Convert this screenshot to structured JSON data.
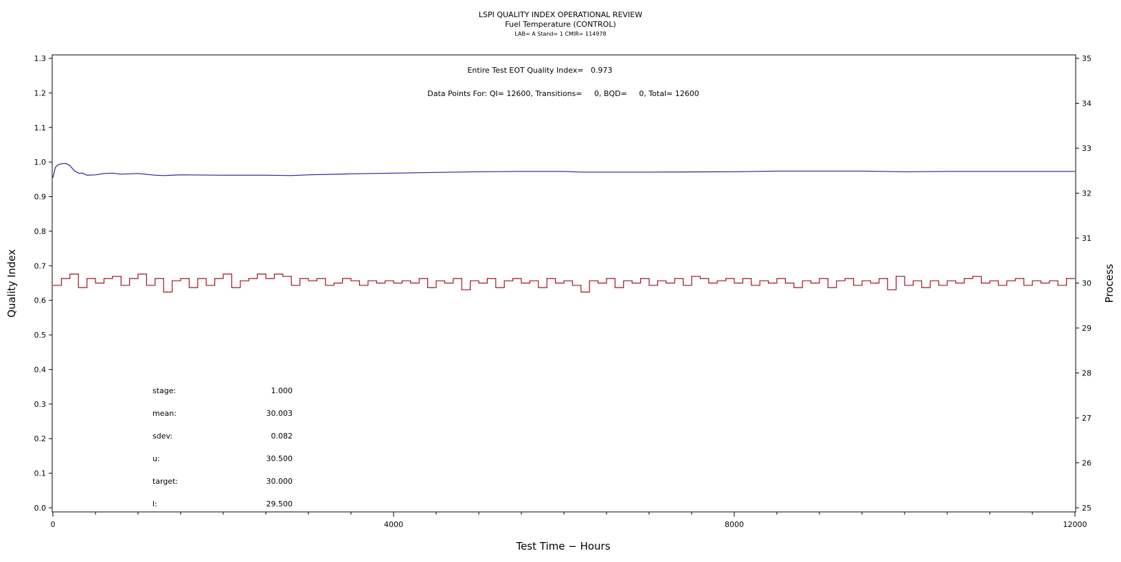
{
  "chart_data": {
    "type": "line",
    "title": "LSPI QUALITY INDEX OPERATIONAL REVIEW",
    "subtitle": "Fuel Temperature (CONTROL)",
    "subtitle2": "LAB= A Stand= 1 CMIR= 114978",
    "annotations": {
      "quality_index": "Entire Test EOT Quality Index=   0.973",
      "data_points": "Data Points For: QI= 12600, Transitions=     0, BQD=     0, Total= 12600"
    },
    "xlabel": "Test Time − Hours",
    "ylabel_left": "Quality Index",
    "ylabel_right": "Process",
    "xlim": [
      0,
      12000
    ],
    "ylim_left": [
      0.0,
      1.3
    ],
    "ylim_right": [
      25,
      35
    ],
    "x_ticks": [
      "0",
      "4000",
      "8000",
      "12000"
    ],
    "y_left_ticks": [
      "0.0",
      "0.1",
      "0.2",
      "0.3",
      "0.4",
      "0.5",
      "0.6",
      "0.7",
      "0.8",
      "0.9",
      "1.0",
      "1.1",
      "1.2",
      "1.3"
    ],
    "y_right_ticks": [
      "25",
      "26",
      "27",
      "28",
      "29",
      "30",
      "31",
      "32",
      "33",
      "34",
      "35"
    ],
    "grid": false,
    "series": [
      {
        "axis": "left",
        "color": "#1f1f9f",
        "x": [
          0,
          30,
          60,
          100,
          150,
          200,
          250,
          300,
          350,
          400,
          500,
          600,
          700,
          800,
          1000,
          1200,
          1300,
          1500,
          2000,
          2500,
          2800,
          3000,
          3500,
          4000,
          4500,
          5000,
          5500,
          6000,
          6200,
          7000,
          8000,
          8500,
          9000,
          9500,
          10000,
          10500,
          11000,
          11500,
          12000
        ],
        "values": [
          0.955,
          0.985,
          0.992,
          0.995,
          0.996,
          0.99,
          0.975,
          0.968,
          0.968,
          0.962,
          0.963,
          0.967,
          0.968,
          0.965,
          0.967,
          0.962,
          0.961,
          0.963,
          0.962,
          0.962,
          0.961,
          0.963,
          0.966,
          0.968,
          0.97,
          0.972,
          0.973,
          0.973,
          0.971,
          0.971,
          0.972,
          0.974,
          0.974,
          0.974,
          0.972,
          0.973,
          0.973,
          0.973,
          0.973
        ]
      },
      {
        "axis": "right",
        "color": "#a01020",
        "x": [
          0,
          100,
          200,
          300,
          400,
          500,
          600,
          700,
          800,
          900,
          1000,
          1100,
          1200,
          1300,
          1400,
          1500,
          1600,
          1700,
          1800,
          1900,
          2000,
          2100,
          2200,
          2300,
          2400,
          2500,
          2600,
          2700,
          2800,
          2900,
          3000,
          3100,
          3200,
          3300,
          3400,
          3500,
          3600,
          3700,
          3800,
          3900,
          4000,
          4100,
          4200,
          4300,
          4400,
          4500,
          4600,
          4700,
          4800,
          4900,
          5000,
          5100,
          5200,
          5300,
          5400,
          5500,
          5600,
          5700,
          5800,
          5900,
          6000,
          6100,
          6200,
          6300,
          6400,
          6500,
          6600,
          6700,
          6800,
          6900,
          7000,
          7100,
          7200,
          7300,
          7400,
          7500,
          7600,
          7700,
          7800,
          7900,
          8000,
          8100,
          8200,
          8300,
          8400,
          8500,
          8600,
          8700,
          8800,
          8900,
          9000,
          9100,
          9200,
          9300,
          9400,
          9500,
          9600,
          9700,
          9800,
          9900,
          10000,
          10100,
          10200,
          10300,
          10400,
          10500,
          10600,
          10700,
          10800,
          10900,
          11000,
          11100,
          11200,
          11300,
          11400,
          11500,
          11600,
          11700,
          11800,
          11900,
          12000
        ],
        "values": [
          29.95,
          30.1,
          30.2,
          29.9,
          30.1,
          30.0,
          30.1,
          30.15,
          29.95,
          30.1,
          30.2,
          29.95,
          30.1,
          29.8,
          30.05,
          30.1,
          29.9,
          30.1,
          29.95,
          30.1,
          30.2,
          29.9,
          30.05,
          30.1,
          30.2,
          30.1,
          30.2,
          30.15,
          29.95,
          30.1,
          30.05,
          30.1,
          29.95,
          30.0,
          30.1,
          30.05,
          29.95,
          30.05,
          30.0,
          30.05,
          30.0,
          30.05,
          30.0,
          30.1,
          29.9,
          30.05,
          30.0,
          30.1,
          29.85,
          30.05,
          30.0,
          30.1,
          29.9,
          30.05,
          30.1,
          30.0,
          30.05,
          29.9,
          30.1,
          30.0,
          30.05,
          29.95,
          29.8,
          30.05,
          30.0,
          30.1,
          29.9,
          30.05,
          30.0,
          30.1,
          29.95,
          30.05,
          30.0,
          30.1,
          29.95,
          30.15,
          30.1,
          30.0,
          30.05,
          30.1,
          30.0,
          30.1,
          29.95,
          30.05,
          30.0,
          30.1,
          30.0,
          29.9,
          30.05,
          30.0,
          30.1,
          29.9,
          30.05,
          30.1,
          29.95,
          30.05,
          30.0,
          30.1,
          29.85,
          30.15,
          29.95,
          30.05,
          29.9,
          30.05,
          29.95,
          30.05,
          30.0,
          30.1,
          30.15,
          30.0,
          30.05,
          29.95,
          30.05,
          30.1,
          29.95,
          30.05,
          30.0,
          30.05,
          29.95,
          30.1,
          30.1
        ]
      }
    ],
    "stats": [
      {
        "label": "stage:",
        "value": "1.000"
      },
      {
        "label": "mean:",
        "value": "30.003"
      },
      {
        "label": "sdev:",
        "value": "0.082"
      },
      {
        "label": "u:",
        "value": "30.500"
      },
      {
        "label": "target:",
        "value": "30.000"
      },
      {
        "label": "l:",
        "value": "29.500"
      }
    ]
  }
}
